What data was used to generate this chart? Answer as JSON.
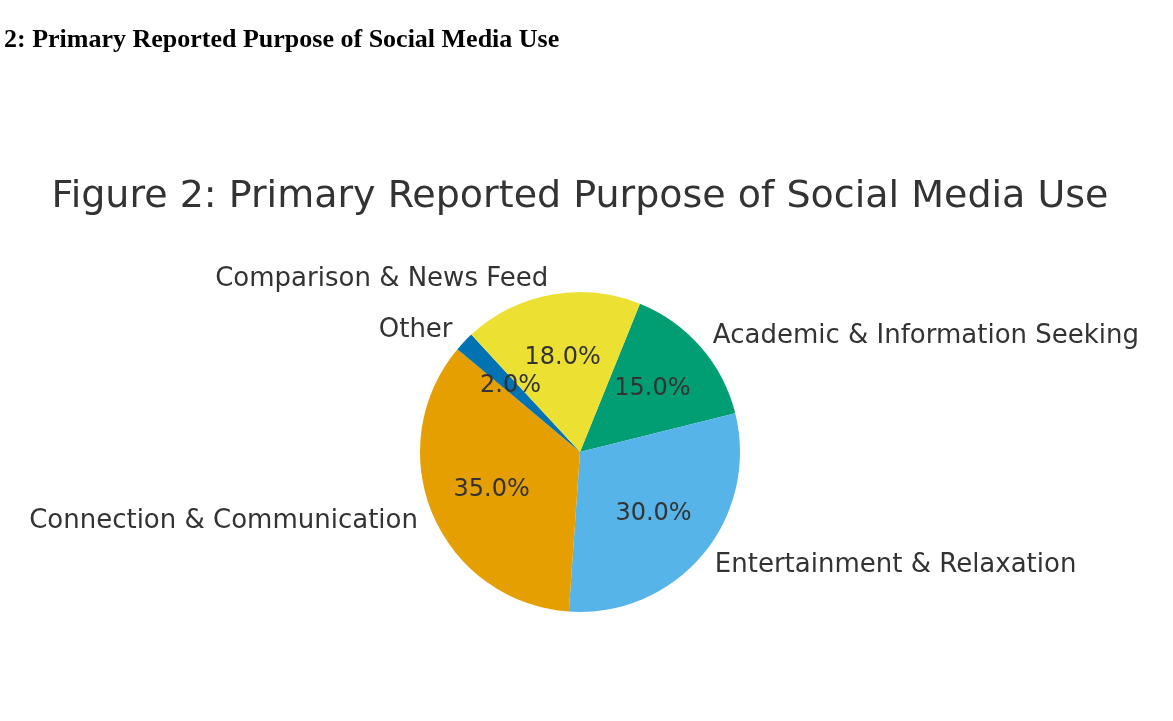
{
  "chart_data": {
    "type": "pie",
    "title": "Figure 2: Primary Reported Purpose of Social Media Use",
    "annotations": [
      "2: Primary Reported Purpose of Social Media Use"
    ],
    "categories": [
      "Academic & Information Seeking",
      "Entertainment & Relaxation",
      "Connection & Communication",
      "Other",
      "Comparison & News Feed"
    ],
    "values": [
      15,
      30,
      35,
      2,
      18
    ],
    "value_labels": [
      "15.0%",
      "30.0%",
      "35.0%",
      "2.0%",
      "18.0%"
    ],
    "colors": [
      "#029e73",
      "#56b4e9",
      "#e69f00",
      "#0173b2",
      "#ece133"
    ],
    "legend": false
  }
}
